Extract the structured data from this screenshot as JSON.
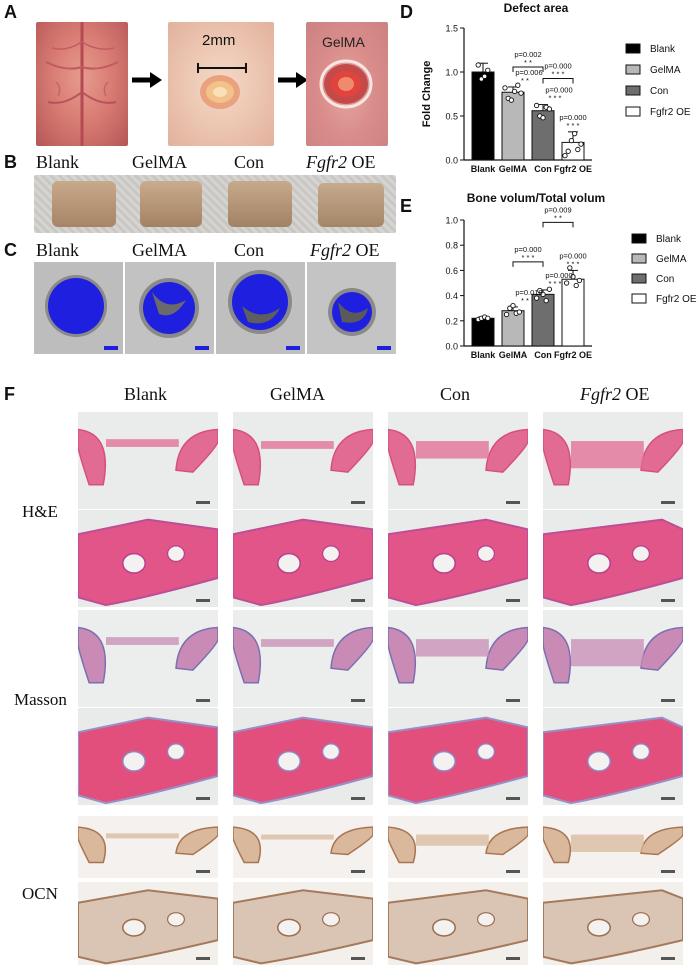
{
  "panels": {
    "A": "A",
    "B": "B",
    "C": "C",
    "D": "D",
    "E": "E",
    "F": "F"
  },
  "panel_a": {
    "scale_label": "2mm",
    "gel_label": "GelMA"
  },
  "groups": [
    "Blank",
    "GelMA",
    "Con",
    "Fgfr2 OE"
  ],
  "panel_b_labels": [
    {
      "text": "Blank",
      "italic_part": "",
      "rest": ""
    },
    {
      "text": "GelMA",
      "italic_part": "",
      "rest": ""
    },
    {
      "text": "Con",
      "italic_part": "",
      "rest": ""
    },
    {
      "text": "",
      "italic_part": "Fgfr2",
      "rest": " OE"
    }
  ],
  "panel_f": {
    "col_labels": [
      {
        "text": "Blank",
        "italic_part": "",
        "rest": ""
      },
      {
        "text": "GelMA",
        "italic_part": "",
        "rest": ""
      },
      {
        "text": "Con",
        "italic_part": "",
        "rest": ""
      },
      {
        "text": "",
        "italic_part": "Fgfr2",
        "rest": " OE"
      }
    ],
    "row_labels": [
      "H&E",
      "Masson",
      "OCN"
    ]
  },
  "chart_data": [
    {
      "type": "bar",
      "title": "Defect area",
      "ylabel": "Fold Change",
      "categories": [
        "Blank",
        "GelMA",
        "Con",
        "Fgfr2 OE"
      ],
      "values": [
        1.0,
        0.77,
        0.56,
        0.2
      ],
      "errors": [
        0.1,
        0.06,
        0.07,
        0.12
      ],
      "points": [
        [
          1.08,
          0.92,
          0.95,
          1.02
        ],
        [
          0.82,
          0.7,
          0.68,
          0.78,
          0.85,
          0.76
        ],
        [
          0.62,
          0.5,
          0.48,
          0.6,
          0.58
        ],
        [
          0.05,
          0.1,
          0.22,
          0.3,
          0.12,
          0.18
        ]
      ],
      "ylim": [
        0,
        1.5
      ],
      "yticks": [
        "0.0",
        "0.5",
        "1.0",
        "1.5"
      ],
      "colors": [
        "#000000",
        "#b8b8b8",
        "#6e6e6e",
        "#ffffff"
      ],
      "legend": [
        "Blank",
        "GelMA",
        "Con",
        "Fgfr2 OE"
      ],
      "bar_annotations": [
        {
          "bar": 1,
          "p": "p=0.006",
          "stars": "* *"
        },
        {
          "bar": 2,
          "p": "p=0.000",
          "stars": "* * *"
        },
        {
          "bar": 3,
          "p": "p=0.000",
          "stars": "* * *"
        }
      ],
      "brackets": [
        {
          "from": 1,
          "to": 2,
          "p": "p=0.002",
          "stars": "* *"
        },
        {
          "from": 2,
          "to": 3,
          "p": "p=0.000",
          "stars": "* * *"
        }
      ]
    },
    {
      "type": "bar",
      "title": "Bone volum/Total volum",
      "ylabel": "",
      "categories": [
        "Blank",
        "GelMA",
        "Con",
        "Fgfr2 OE"
      ],
      "values": [
        0.22,
        0.28,
        0.41,
        0.53
      ],
      "errors": [
        0.01,
        0.03,
        0.035,
        0.07
      ],
      "points": [
        [
          0.21,
          0.22,
          0.23,
          0.22
        ],
        [
          0.25,
          0.3,
          0.32,
          0.26,
          0.27
        ],
        [
          0.38,
          0.44,
          0.41,
          0.36,
          0.45
        ],
        [
          0.5,
          0.62,
          0.55,
          0.48,
          0.52
        ]
      ],
      "ylim": [
        0,
        1.0
      ],
      "yticks": [
        "0.0",
        "0.2",
        "0.4",
        "0.6",
        "0.8",
        "1.0"
      ],
      "colors": [
        "#000000",
        "#b8b8b8",
        "#6e6e6e",
        "#ffffff"
      ],
      "legend": [
        "Blank",
        "GelMA",
        "Con",
        "Fgfr2 OE"
      ],
      "bar_annotations": [
        {
          "bar": 1,
          "p": "p=0.010",
          "stars": "* *"
        },
        {
          "bar": 2,
          "p": "p=0.000",
          "stars": "* * *"
        },
        {
          "bar": 3,
          "p": "p=0.000",
          "stars": "* * *"
        }
      ],
      "brackets": [
        {
          "from": 1,
          "to": 2,
          "p": "p=0.000",
          "stars": "* * *"
        },
        {
          "from": 2,
          "to": 3,
          "p": "p=0.009",
          "stars": "* *"
        }
      ]
    }
  ]
}
